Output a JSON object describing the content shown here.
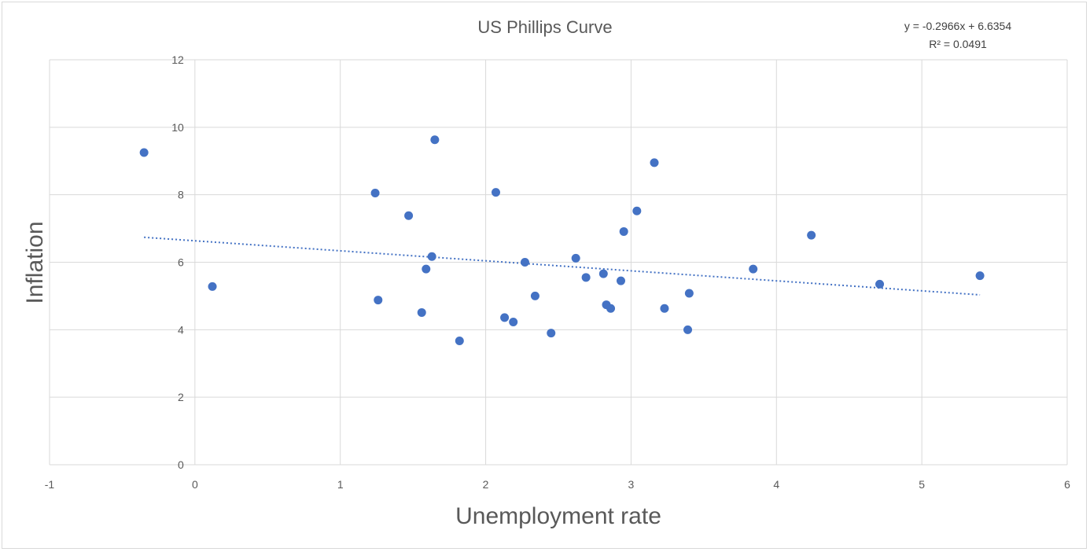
{
  "chart_data": {
    "type": "scatter",
    "title": "US Phillips Curve",
    "xlabel": "Unemployment rate",
    "ylabel": "Inflation",
    "xlim": [
      -1,
      6
    ],
    "ylim": [
      0,
      12
    ],
    "xticks": [
      "-1",
      "0",
      "1",
      "2",
      "3",
      "4",
      "5",
      "6"
    ],
    "yticks": [
      "0",
      "2",
      "4",
      "6",
      "8",
      "10",
      "12"
    ],
    "grid": true,
    "legend": "none",
    "point_color": "#4472c4",
    "trendline": {
      "type": "linear",
      "slope": -0.2966,
      "intercept": 6.6354,
      "x_range": [
        -0.35,
        5.4
      ],
      "style": "dotted",
      "equation": "y = -0.2966x + 6.6354",
      "r_squared": "R² = 0.0491"
    },
    "points": [
      {
        "x": -0.35,
        "y": 9.25
      },
      {
        "x": 0.12,
        "y": 5.28
      },
      {
        "x": 1.24,
        "y": 8.05
      },
      {
        "x": 1.26,
        "y": 4.88
      },
      {
        "x": 1.47,
        "y": 7.38
      },
      {
        "x": 1.56,
        "y": 4.51
      },
      {
        "x": 1.59,
        "y": 5.8
      },
      {
        "x": 1.63,
        "y": 6.17
      },
      {
        "x": 1.65,
        "y": 9.63
      },
      {
        "x": 1.82,
        "y": 3.67
      },
      {
        "x": 2.07,
        "y": 8.07
      },
      {
        "x": 2.13,
        "y": 4.36
      },
      {
        "x": 2.19,
        "y": 4.23
      },
      {
        "x": 2.27,
        "y": 6.0
      },
      {
        "x": 2.34,
        "y": 5.0
      },
      {
        "x": 2.45,
        "y": 3.9
      },
      {
        "x": 2.62,
        "y": 6.12
      },
      {
        "x": 2.69,
        "y": 5.55
      },
      {
        "x": 2.81,
        "y": 5.66
      },
      {
        "x": 2.83,
        "y": 4.74
      },
      {
        "x": 2.86,
        "y": 4.63
      },
      {
        "x": 2.93,
        "y": 5.45
      },
      {
        "x": 2.95,
        "y": 6.91
      },
      {
        "x": 3.04,
        "y": 7.52
      },
      {
        "x": 3.16,
        "y": 8.95
      },
      {
        "x": 3.23,
        "y": 4.63
      },
      {
        "x": 3.39,
        "y": 4.0
      },
      {
        "x": 3.4,
        "y": 5.08
      },
      {
        "x": 3.84,
        "y": 5.8
      },
      {
        "x": 4.24,
        "y": 6.8
      },
      {
        "x": 4.71,
        "y": 5.35
      },
      {
        "x": 5.4,
        "y": 5.6
      }
    ]
  }
}
